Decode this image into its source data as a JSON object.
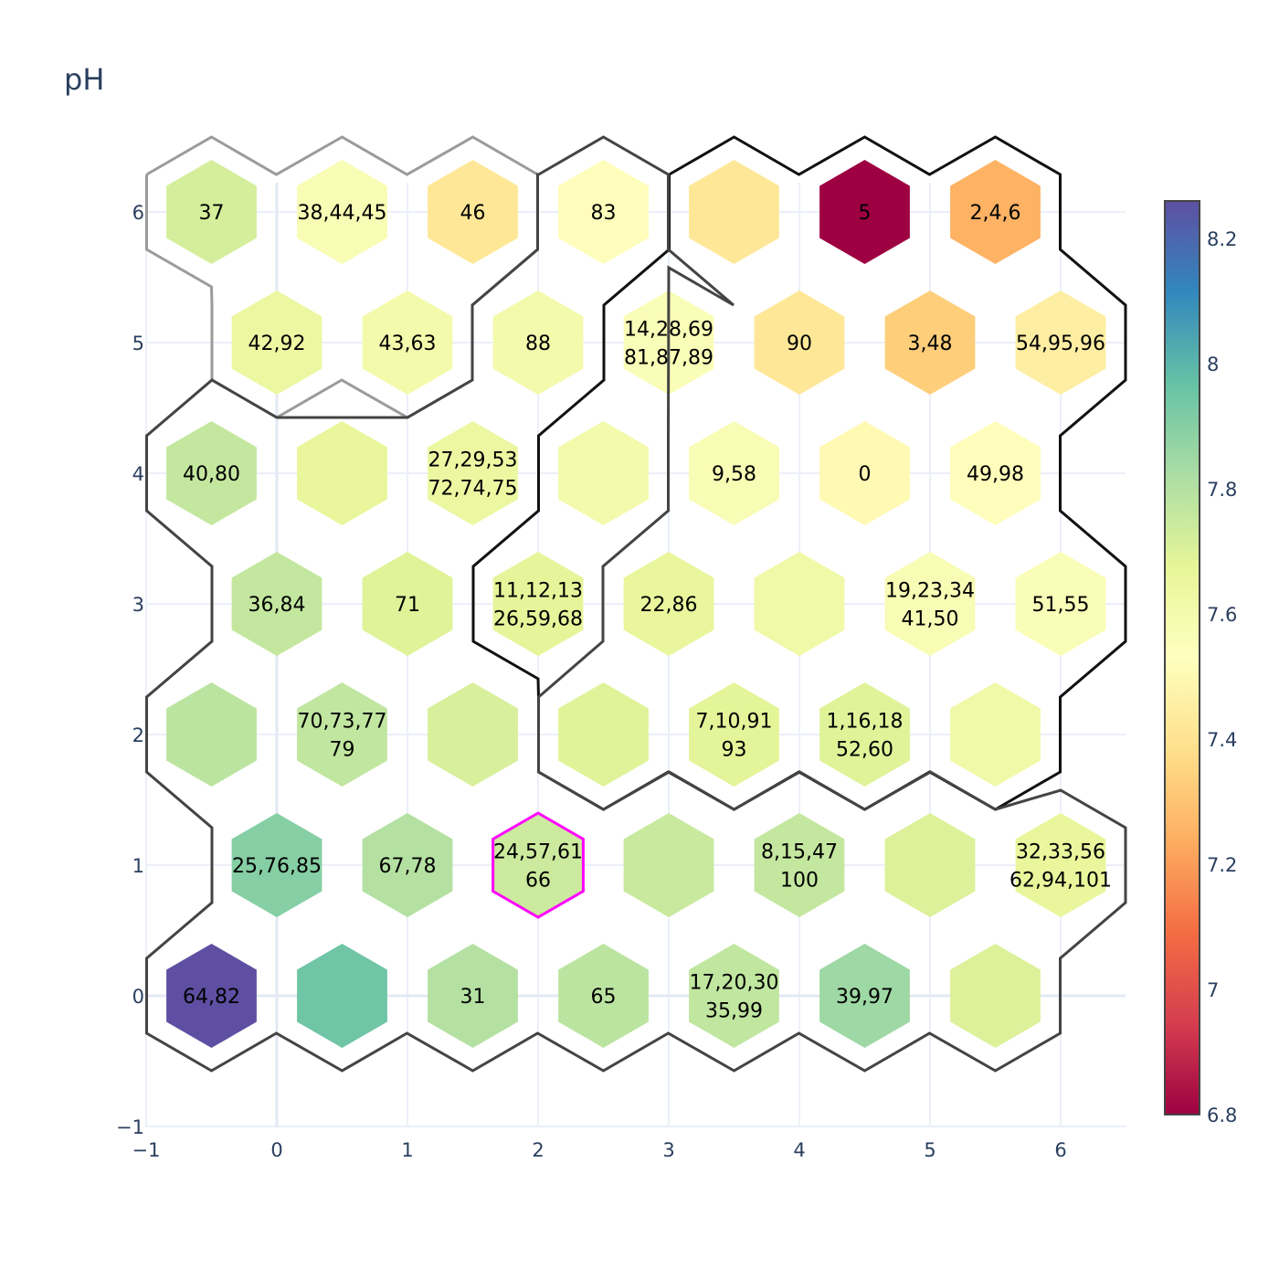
{
  "chart_data": {
    "type": "heatmap",
    "subtype": "hexagonal-som-map",
    "title": "pH",
    "xlabel": "",
    "ylabel": "",
    "xlim": [
      -1,
      6.5
    ],
    "ylim": [
      -1,
      6.2
    ],
    "x_ticks": [
      "−1",
      "0",
      "1",
      "2",
      "3",
      "4",
      "5",
      "6"
    ],
    "y_ticks": [
      "−1",
      "0",
      "1",
      "2",
      "3",
      "4",
      "5",
      "6"
    ],
    "colorscale": "Spectral",
    "colorbar": {
      "min": 6.8,
      "max": 8.26,
      "ticks": [
        "6.8",
        "7",
        "7.2",
        "7.4",
        "7.6",
        "7.8",
        "8",
        "8.2"
      ]
    },
    "grid": true,
    "cells": [
      {
        "x": -0.5,
        "y": 0,
        "value": 8.26,
        "label": [
          "64,82"
        ]
      },
      {
        "x": 0.5,
        "y": 0,
        "value": 7.95,
        "label": []
      },
      {
        "x": 1.5,
        "y": 0,
        "value": 7.8,
        "label": [
          "31"
        ]
      },
      {
        "x": 2.5,
        "y": 0,
        "value": 7.78,
        "label": [
          "65"
        ]
      },
      {
        "x": 3.5,
        "y": 0,
        "value": 7.77,
        "label": [
          "17,20,30",
          "35,99"
        ]
      },
      {
        "x": 4.5,
        "y": 0,
        "value": 7.85,
        "label": [
          "39,97"
        ]
      },
      {
        "x": 5.5,
        "y": 0,
        "value": 7.7,
        "label": []
      },
      {
        "x": 0,
        "y": 1,
        "value": 7.9,
        "label": [
          "25,76,85"
        ]
      },
      {
        "x": 1,
        "y": 1,
        "value": 7.8,
        "label": [
          "67,78"
        ]
      },
      {
        "x": 2,
        "y": 1,
        "value": 7.74,
        "label": [
          "24,57,61",
          "66"
        ],
        "highlight": true
      },
      {
        "x": 3,
        "y": 1,
        "value": 7.75,
        "label": []
      },
      {
        "x": 4,
        "y": 1,
        "value": 7.76,
        "label": [
          "8,15,47",
          "100"
        ]
      },
      {
        "x": 5,
        "y": 1,
        "value": 7.7,
        "label": []
      },
      {
        "x": 6,
        "y": 1,
        "value": 7.66,
        "label": [
          "32,33,56",
          "62,94,101"
        ]
      },
      {
        "x": -0.5,
        "y": 2,
        "value": 7.78,
        "label": []
      },
      {
        "x": 0.5,
        "y": 2,
        "value": 7.77,
        "label": [
          "70,73,77",
          "79"
        ]
      },
      {
        "x": 1.5,
        "y": 2,
        "value": 7.71,
        "label": []
      },
      {
        "x": 2.5,
        "y": 2,
        "value": 7.69,
        "label": []
      },
      {
        "x": 3.5,
        "y": 2,
        "value": 7.68,
        "label": [
          "7,10,91",
          "93"
        ]
      },
      {
        "x": 4.5,
        "y": 2,
        "value": 7.69,
        "label": [
          "1,16,18",
          "52,60"
        ]
      },
      {
        "x": 5.5,
        "y": 2,
        "value": 7.62,
        "label": []
      },
      {
        "x": 0,
        "y": 3,
        "value": 7.76,
        "label": [
          "36,84"
        ]
      },
      {
        "x": 1,
        "y": 3,
        "value": 7.69,
        "label": [
          "71"
        ]
      },
      {
        "x": 2,
        "y": 3,
        "value": 7.67,
        "label": [
          "11,12,13",
          "26,59,68"
        ]
      },
      {
        "x": 3,
        "y": 3,
        "value": 7.66,
        "label": [
          "22,86"
        ]
      },
      {
        "x": 4,
        "y": 3,
        "value": 7.62,
        "label": []
      },
      {
        "x": 5,
        "y": 3,
        "value": 7.57,
        "label": [
          "19,23,34",
          "41,50"
        ]
      },
      {
        "x": 6,
        "y": 3,
        "value": 7.56,
        "label": [
          "51,55"
        ]
      },
      {
        "x": -0.5,
        "y": 4,
        "value": 7.76,
        "label": [
          "40,80"
        ]
      },
      {
        "x": 0.5,
        "y": 4,
        "value": 7.66,
        "label": []
      },
      {
        "x": 1.5,
        "y": 4,
        "value": 7.64,
        "label": [
          "27,29,53",
          "72,74,75"
        ]
      },
      {
        "x": 2.5,
        "y": 4,
        "value": 7.6,
        "label": []
      },
      {
        "x": 3.5,
        "y": 4,
        "value": 7.57,
        "label": [
          "9,58"
        ]
      },
      {
        "x": 4.5,
        "y": 4,
        "value": 7.5,
        "label": [
          "0"
        ]
      },
      {
        "x": 5.5,
        "y": 4,
        "value": 7.52,
        "label": [
          "49,98"
        ]
      },
      {
        "x": 0,
        "y": 5,
        "value": 7.64,
        "label": [
          "42,92"
        ]
      },
      {
        "x": 1,
        "y": 5,
        "value": 7.6,
        "label": [
          "43,63"
        ]
      },
      {
        "x": 2,
        "y": 5,
        "value": 7.6,
        "label": [
          "88"
        ]
      },
      {
        "x": 3,
        "y": 5,
        "value": 7.56,
        "label": [
          "14,28,69",
          "81,87,89"
        ]
      },
      {
        "x": 4,
        "y": 5,
        "value": 7.42,
        "label": [
          "90"
        ]
      },
      {
        "x": 5,
        "y": 5,
        "value": 7.33,
        "label": [
          "3,48"
        ]
      },
      {
        "x": 6,
        "y": 5,
        "value": 7.45,
        "label": [
          "54,95,96"
        ]
      },
      {
        "x": -0.5,
        "y": 6,
        "value": 7.72,
        "label": [
          "37"
        ]
      },
      {
        "x": 0.5,
        "y": 6,
        "value": 7.57,
        "label": [
          "38,44,45"
        ]
      },
      {
        "x": 1.5,
        "y": 6,
        "value": 7.42,
        "label": [
          "46"
        ]
      },
      {
        "x": 2.5,
        "y": 6,
        "value": 7.52,
        "label": [
          "83"
        ]
      },
      {
        "x": 3.5,
        "y": 6,
        "value": 7.42,
        "label": []
      },
      {
        "x": 4.5,
        "y": 6,
        "value": 6.8,
        "label": [
          "5"
        ]
      },
      {
        "x": 5.5,
        "y": 6,
        "value": 7.25,
        "label": [
          "2,4,6"
        ]
      }
    ]
  }
}
